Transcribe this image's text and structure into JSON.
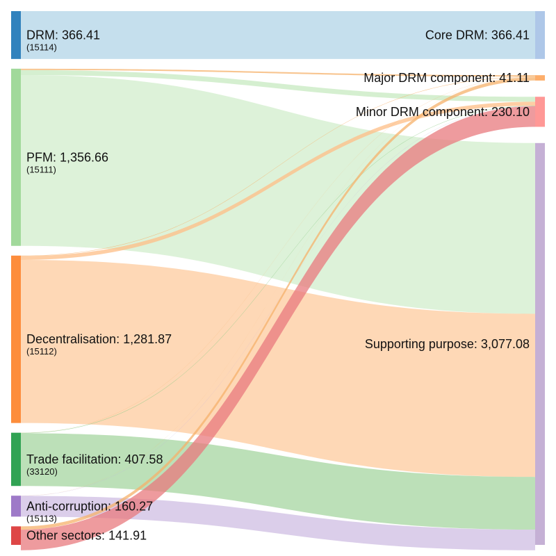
{
  "chart_data": {
    "type": "sankey",
    "sources": [
      {
        "id": "drm",
        "label": "DRM: 366.41",
        "code": "(15114)",
        "value": 366.41,
        "color": "#3182bd",
        "flowColor": "#9ecae1"
      },
      {
        "id": "pfm",
        "label": "PFM: 1,356.66",
        "code": "(15111)",
        "value": 1356.66,
        "color": "#a1d99b",
        "flowColor": "#c7e9c0"
      },
      {
        "id": "dec",
        "label": "Decentralisation: 1,281.87",
        "code": "(15112)",
        "value": 1281.87,
        "color": "#fd8d3c",
        "flowColor": "#fdbe85"
      },
      {
        "id": "trade",
        "label": "Trade facilitation: 407.58",
        "code": "(33120)",
        "value": 407.58,
        "color": "#31a354",
        "flowColor": "#8fcc88"
      },
      {
        "id": "anti",
        "label": "Anti-corruption: 160.27",
        "code": "(15113)",
        "value": 160.27,
        "color": "#9e7ac8",
        "flowColor": "#c3aedc"
      },
      {
        "id": "other",
        "label": "Other sectors: 141.91",
        "code": "",
        "value": 141.91,
        "color": "#de4646",
        "flowColor": "#ef8f8f"
      }
    ],
    "targets": [
      {
        "id": "core",
        "label": "Core DRM: 366.41",
        "value": 366.41,
        "color": "#aec7e8"
      },
      {
        "id": "major",
        "label": "Major DRM component: 41.11",
        "value": 41.11,
        "color": "#fdae6b"
      },
      {
        "id": "minor",
        "label": "Minor DRM component: 230.10",
        "value": 230.1,
        "color": "#ff9896"
      },
      {
        "id": "support",
        "label": "Supporting purpose: 3,077.08",
        "value": 3077.08,
        "color": "#c5b0d5"
      }
    ],
    "flows": [
      {
        "source": "drm",
        "target": "core",
        "value": 366.41
      },
      {
        "source": "pfm",
        "target": "major",
        "value": 11.0
      },
      {
        "source": "pfm",
        "target": "minor",
        "value": 38.0
      },
      {
        "source": "pfm",
        "target": "support",
        "value": 1307.66
      },
      {
        "source": "dec",
        "target": "major",
        "value": 3.0
      },
      {
        "source": "dec",
        "target": "minor",
        "value": 30.0
      },
      {
        "source": "dec",
        "target": "support",
        "value": 1248.87
      },
      {
        "source": "trade",
        "target": "major",
        "value": 1.1
      },
      {
        "source": "trade",
        "target": "minor",
        "value": 3.0
      },
      {
        "source": "trade",
        "target": "support",
        "value": 403.48
      },
      {
        "source": "anti",
        "target": "major",
        "value": 0.6
      },
      {
        "source": "anti",
        "target": "minor",
        "value": 1.2
      },
      {
        "source": "anti",
        "target": "support",
        "value": 158.47
      },
      {
        "source": "other",
        "target": "major",
        "value": 25.41
      },
      {
        "source": "other",
        "target": "minor",
        "value": 157.9
      },
      {
        "source": "other",
        "target": "support",
        "value": -41.4
      }
    ]
  }
}
